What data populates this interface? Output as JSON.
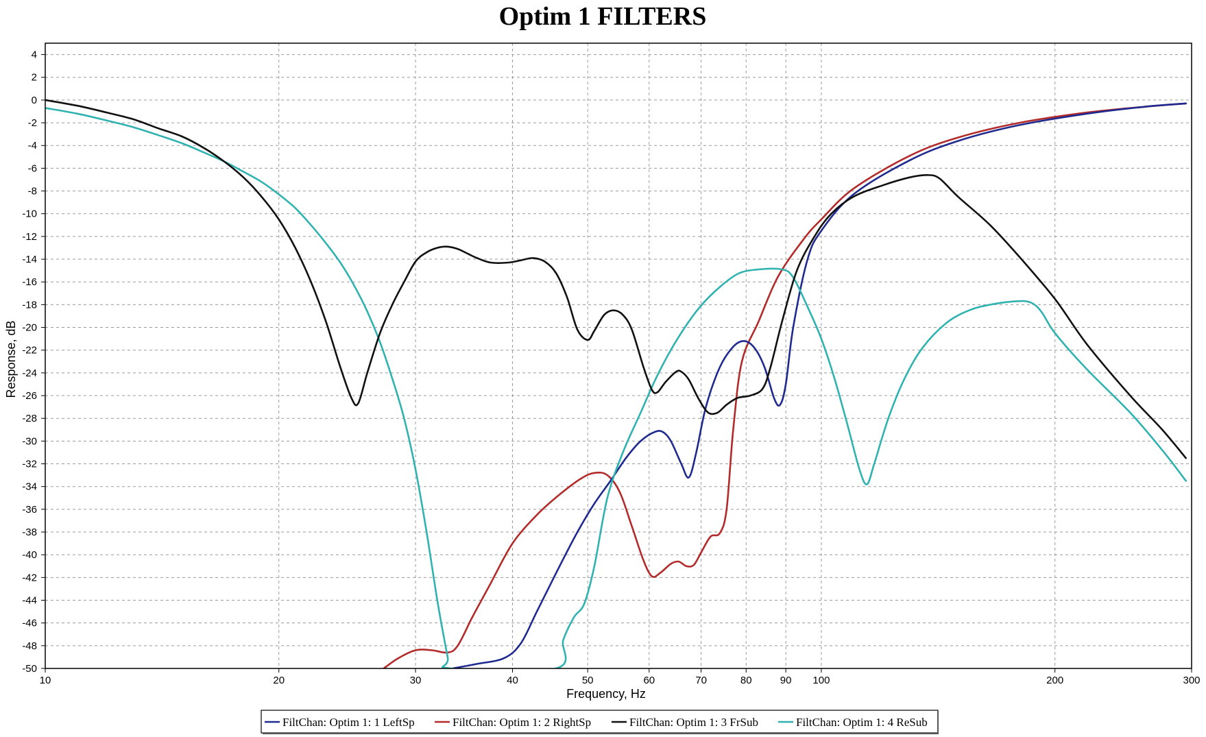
{
  "chart_data": {
    "type": "line",
    "title": "Optim 1 FILTERS",
    "xlabel": "Frequency, Hz",
    "ylabel": "Response, dB",
    "xscale": "log",
    "xlim": [
      10,
      300
    ],
    "ylim": [
      -50,
      5
    ],
    "x_ticks": [
      10,
      20,
      30,
      40,
      50,
      60,
      70,
      80,
      90,
      100,
      200,
      300
    ],
    "x_tick_labels": [
      "10",
      "20",
      "30",
      "40",
      "50",
      "60",
      "70",
      "80",
      "90",
      "100",
      "200",
      "300"
    ],
    "y_ticks": [
      4,
      2,
      0,
      -2,
      -4,
      -6,
      -8,
      -10,
      -12,
      -14,
      -16,
      -18,
      -20,
      -22,
      -24,
      -26,
      -28,
      -30,
      -32,
      -34,
      -36,
      -38,
      -40,
      -42,
      -44,
      -46,
      -48,
      -50
    ],
    "y_tick_labels": [
      "4",
      "2",
      "0",
      "-2",
      "-4",
      "-6",
      "-8",
      "-10",
      "-12",
      "-14",
      "-16",
      "-18",
      "-20",
      "-22",
      "-24",
      "-26",
      "-28",
      "-30",
      "-32",
      "-34",
      "-36",
      "-38",
      "-40",
      "-42",
      "-44",
      "-46",
      "-48",
      "-50"
    ],
    "grid": true,
    "legend_position": "bottom-center",
    "series": [
      {
        "name": "FiltChan: Optim 1: 1 LeftSp",
        "color": "#1f2a8f",
        "points": [
          [
            33.5,
            -50
          ],
          [
            36,
            -49.6
          ],
          [
            39,
            -49.1
          ],
          [
            41,
            -47.8
          ],
          [
            43,
            -45
          ],
          [
            46,
            -41
          ],
          [
            48.5,
            -38
          ],
          [
            51,
            -35.5
          ],
          [
            53.5,
            -33.5
          ],
          [
            56,
            -31.5
          ],
          [
            58.5,
            -30
          ],
          [
            61,
            -29.2
          ],
          [
            62.5,
            -29.2
          ],
          [
            64,
            -30
          ],
          [
            66,
            -32
          ],
          [
            67.5,
            -33.2
          ],
          [
            69,
            -31
          ],
          [
            71,
            -27
          ],
          [
            74,
            -23.5
          ],
          [
            77,
            -21.7
          ],
          [
            79.5,
            -21.2
          ],
          [
            82,
            -21.8
          ],
          [
            84.5,
            -23.5
          ],
          [
            87,
            -26.3
          ],
          [
            88.5,
            -26.8
          ],
          [
            90,
            -25
          ],
          [
            92,
            -20
          ],
          [
            96,
            -14
          ],
          [
            100,
            -11.5
          ],
          [
            110,
            -8.3
          ],
          [
            130,
            -5.3
          ],
          [
            150,
            -3.6
          ],
          [
            180,
            -2.2
          ],
          [
            220,
            -1.2
          ],
          [
            260,
            -0.6
          ],
          [
            295,
            -0.3
          ]
        ]
      },
      {
        "name": "FiltChan: Optim 1: 2 RightSp",
        "color": "#b22a2a",
        "points": [
          [
            27.3,
            -50
          ],
          [
            28.5,
            -49.1
          ],
          [
            30,
            -48.4
          ],
          [
            31.5,
            -48.4
          ],
          [
            33,
            -48.6
          ],
          [
            34,
            -48
          ],
          [
            35.5,
            -45.5
          ],
          [
            37.5,
            -42.5
          ],
          [
            40,
            -39
          ],
          [
            43,
            -36.5
          ],
          [
            46,
            -34.7
          ],
          [
            49,
            -33.3
          ],
          [
            51,
            -32.8
          ],
          [
            53,
            -33
          ],
          [
            55,
            -34.5
          ],
          [
            57,
            -37.5
          ],
          [
            59,
            -40.5
          ],
          [
            60.5,
            -41.9
          ],
          [
            62,
            -41.6
          ],
          [
            64,
            -40.8
          ],
          [
            65.5,
            -40.6
          ],
          [
            67,
            -41
          ],
          [
            68.5,
            -40.9
          ],
          [
            70,
            -39.8
          ],
          [
            72,
            -38.4
          ],
          [
            74,
            -38.1
          ],
          [
            75.5,
            -36
          ],
          [
            77,
            -29
          ],
          [
            79,
            -23
          ],
          [
            83,
            -19.5
          ],
          [
            88,
            -15.5
          ],
          [
            95,
            -12.2
          ],
          [
            100,
            -10.5
          ],
          [
            110,
            -7.8
          ],
          [
            130,
            -4.9
          ],
          [
            150,
            -3.3
          ],
          [
            180,
            -2
          ],
          [
            220,
            -1.1
          ],
          [
            260,
            -0.6
          ],
          [
            295,
            -0.3
          ]
        ]
      },
      {
        "name": "FiltChan: Optim 1: 3 FrSub",
        "color": "#111111",
        "points": [
          [
            10,
            0
          ],
          [
            11,
            -0.5
          ],
          [
            12,
            -1.1
          ],
          [
            13,
            -1.7
          ],
          [
            14,
            -2.5
          ],
          [
            15,
            -3.2
          ],
          [
            16,
            -4.2
          ],
          [
            17,
            -5.4
          ],
          [
            18,
            -6.8
          ],
          [
            19,
            -8.5
          ],
          [
            20,
            -10.5
          ],
          [
            21,
            -13
          ],
          [
            22,
            -16
          ],
          [
            23,
            -19.5
          ],
          [
            24,
            -23.5
          ],
          [
            24.8,
            -26.2
          ],
          [
            25.3,
            -26.7
          ],
          [
            26,
            -24
          ],
          [
            27,
            -20.5
          ],
          [
            28,
            -18
          ],
          [
            29,
            -16
          ],
          [
            30,
            -14.2
          ],
          [
            31,
            -13.4
          ],
          [
            32,
            -13
          ],
          [
            33,
            -12.9
          ],
          [
            34,
            -13.1
          ],
          [
            35,
            -13.5
          ],
          [
            36,
            -13.9
          ],
          [
            37.5,
            -14.3
          ],
          [
            39.5,
            -14.3
          ],
          [
            41,
            -14.1
          ],
          [
            42.5,
            -13.9
          ],
          [
            44,
            -14.2
          ],
          [
            45.5,
            -15.2
          ],
          [
            47,
            -17.3
          ],
          [
            48.5,
            -20.2
          ],
          [
            50,
            -21.1
          ],
          [
            51,
            -20.3
          ],
          [
            52.5,
            -18.9
          ],
          [
            54,
            -18.5
          ],
          [
            55.5,
            -18.9
          ],
          [
            57,
            -20.2
          ],
          [
            59,
            -23.5
          ],
          [
            60.5,
            -25.5
          ],
          [
            61.5,
            -25.7
          ],
          [
            63,
            -24.8
          ],
          [
            65,
            -23.9
          ],
          [
            66,
            -23.9
          ],
          [
            67.5,
            -24.6
          ],
          [
            69.5,
            -26.3
          ],
          [
            71.5,
            -27.5
          ],
          [
            73.5,
            -27.5
          ],
          [
            75.5,
            -26.8
          ],
          [
            78,
            -26.2
          ],
          [
            81,
            -26
          ],
          [
            84,
            -25.4
          ],
          [
            86,
            -23.5
          ],
          [
            89,
            -19.5
          ],
          [
            93,
            -15
          ],
          [
            98,
            -12
          ],
          [
            103,
            -10
          ],
          [
            110,
            -8.5
          ],
          [
            120,
            -7.5
          ],
          [
            130,
            -6.8
          ],
          [
            137,
            -6.6
          ],
          [
            142,
            -6.9
          ],
          [
            150,
            -8.5
          ],
          [
            165,
            -11
          ],
          [
            180,
            -13.8
          ],
          [
            200,
            -17.5
          ],
          [
            220,
            -21.5
          ],
          [
            250,
            -26
          ],
          [
            275,
            -29
          ],
          [
            295,
            -31.5
          ]
        ]
      },
      {
        "name": "FiltChan: Optim 1: 4 ReSub",
        "color": "#2fb2b0",
        "points": [
          [
            10,
            -0.7
          ],
          [
            11,
            -1.2
          ],
          [
            12,
            -1.8
          ],
          [
            13,
            -2.4
          ],
          [
            14,
            -3.1
          ],
          [
            15,
            -3.8
          ],
          [
            16,
            -4.6
          ],
          [
            17,
            -5.4
          ],
          [
            18,
            -6.3
          ],
          [
            19,
            -7.2
          ],
          [
            20,
            -8.3
          ],
          [
            21,
            -9.5
          ],
          [
            22,
            -11
          ],
          [
            23,
            -12.6
          ],
          [
            24,
            -14.3
          ],
          [
            25,
            -16.3
          ],
          [
            26,
            -18.6
          ],
          [
            27,
            -21.3
          ],
          [
            28,
            -24.5
          ],
          [
            29,
            -28
          ],
          [
            30,
            -32.5
          ],
          [
            31,
            -38
          ],
          [
            32,
            -44
          ],
          [
            33,
            -49
          ],
          [
            33.3,
            -50
          ],
          [
            45.5,
            -50
          ],
          [
            46.5,
            -47.5
          ],
          [
            48,
            -45.5
          ],
          [
            49.5,
            -44.3
          ],
          [
            51,
            -41
          ],
          [
            53,
            -35
          ],
          [
            55.5,
            -31
          ],
          [
            58.5,
            -27.5
          ],
          [
            61.5,
            -24.2
          ],
          [
            65,
            -21.2
          ],
          [
            69,
            -18.6
          ],
          [
            73,
            -16.8
          ],
          [
            78,
            -15.3
          ],
          [
            83,
            -14.9
          ],
          [
            89,
            -14.9
          ],
          [
            92,
            -15.6
          ],
          [
            96,
            -18.2
          ],
          [
            100,
            -21
          ],
          [
            104,
            -24.5
          ],
          [
            108,
            -28.5
          ],
          [
            112,
            -32.5
          ],
          [
            114.5,
            -33.8
          ],
          [
            117,
            -32
          ],
          [
            122,
            -28
          ],
          [
            128,
            -24.5
          ],
          [
            135,
            -21.8
          ],
          [
            145,
            -19.6
          ],
          [
            155,
            -18.5
          ],
          [
            165,
            -18
          ],
          [
            178,
            -17.7
          ],
          [
            186,
            -17.8
          ],
          [
            192,
            -18.6
          ],
          [
            200,
            -20.5
          ],
          [
            220,
            -23.7
          ],
          [
            250,
            -27.5
          ],
          [
            275,
            -30.8
          ],
          [
            295,
            -33.5
          ]
        ]
      }
    ]
  }
}
